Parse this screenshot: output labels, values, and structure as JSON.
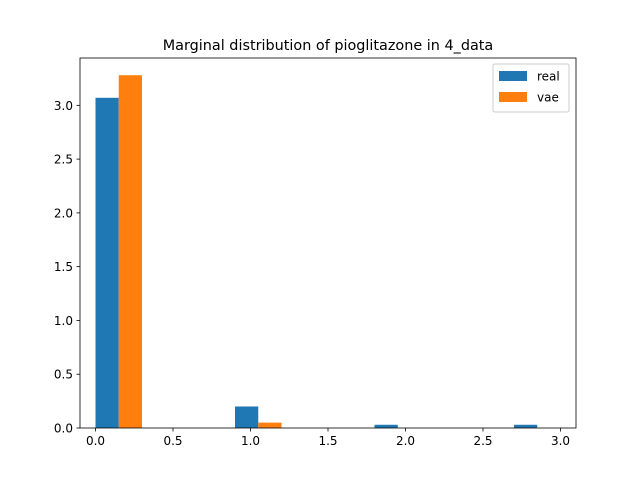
{
  "chart_data": {
    "type": "bar",
    "title": "Marginal distribution of pioglitazone in 4_data",
    "xlabel": "",
    "ylabel": "",
    "xlim": [
      -0.1,
      3.1
    ],
    "ylim": [
      0,
      3.44
    ],
    "x_ticks": [
      0.0,
      0.5,
      1.0,
      1.5,
      2.0,
      2.5,
      3.0
    ],
    "x_tick_labels": [
      "0.0",
      "0.5",
      "1.0",
      "1.5",
      "2.0",
      "2.5",
      "3.0"
    ],
    "y_ticks": [
      0.0,
      0.5,
      1.0,
      1.5,
      2.0,
      2.5,
      3.0
    ],
    "y_tick_labels": [
      "0.0",
      "0.5",
      "1.0",
      "1.5",
      "2.0",
      "2.5",
      "3.0"
    ],
    "grid": false,
    "legend_position": "top-right",
    "bins": [
      [
        0.0,
        0.15
      ],
      [
        0.9,
        1.05
      ],
      [
        1.8,
        1.95
      ],
      [
        2.7,
        2.85
      ]
    ],
    "series": [
      {
        "name": "real",
        "color": "#1f77b4",
        "x": [
          0.0,
          0.9,
          1.8,
          2.7
        ],
        "values": [
          3.07,
          0.2,
          0.03,
          0.03
        ]
      },
      {
        "name": "vae",
        "color": "#ff7f0e",
        "x": [
          0.15,
          1.05
        ],
        "values": [
          3.28,
          0.05
        ]
      }
    ]
  }
}
